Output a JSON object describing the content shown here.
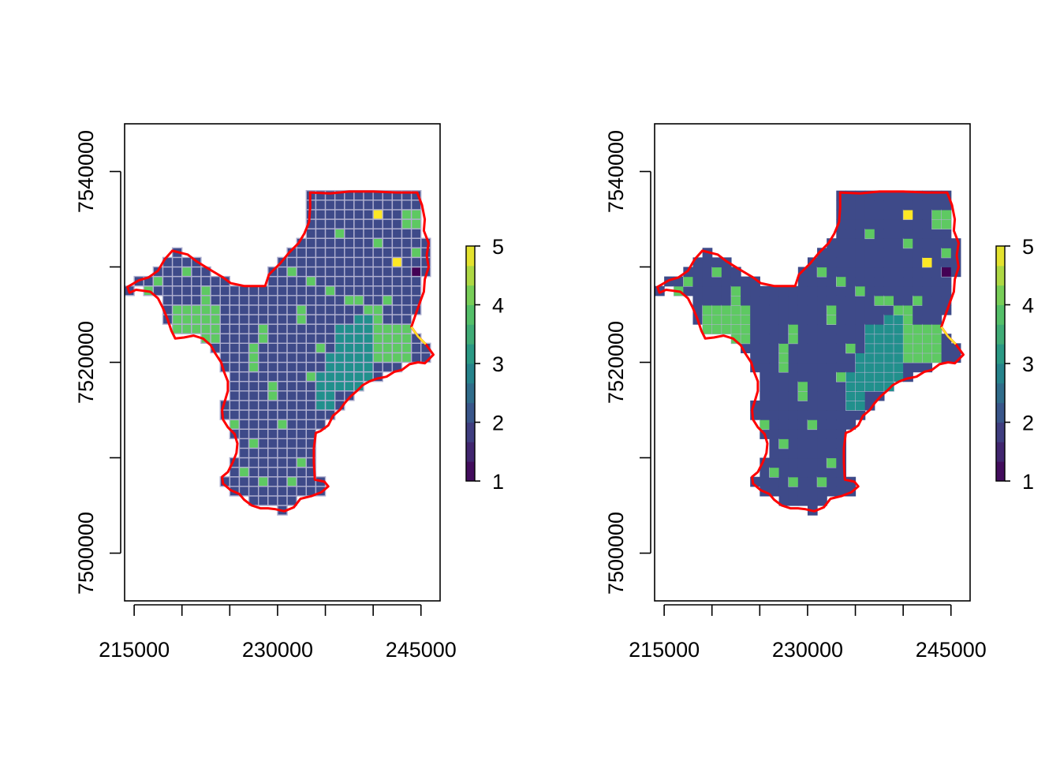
{
  "figure": {
    "panels": [
      {
        "id": "left",
        "title": "",
        "render_mode": "gridded",
        "x_ticks": [
          "215000",
          "230000",
          "245000"
        ],
        "y_ticks": [
          "7500000",
          "7520000",
          "7540000"
        ],
        "legend": {
          "ticks": [
            "1",
            "2",
            "3",
            "4",
            "5"
          ]
        }
      },
      {
        "id": "right",
        "title": "",
        "render_mode": "filled",
        "x_ticks": [
          "215000",
          "230000",
          "245000"
        ],
        "y_ticks": [
          "7500000",
          "7520000",
          "7540000"
        ],
        "legend": {
          "ticks": [
            "1",
            "2",
            "3",
            "4",
            "5"
          ]
        }
      }
    ]
  },
  "map_data": {
    "x_range": [
      214000,
      247000
    ],
    "y_range": [
      7495000,
      7545000
    ],
    "x_major_ticks": [
      215000,
      220000,
      225000,
      230000,
      235000,
      240000,
      245000
    ],
    "x_labeled_ticks": [
      215000,
      230000,
      245000
    ],
    "y_major_ticks": [
      7500000,
      7510000,
      7520000,
      7530000,
      7540000
    ],
    "y_labeled_ticks": [
      7500000,
      7520000,
      7540000
    ],
    "cell_size": 1000,
    "value_range": [
      1,
      5
    ],
    "legend_placement": "right",
    "colors": {
      "v1": "#440154",
      "v2": "#3e4a89",
      "v3": "#21908c",
      "v4": "#5ec962",
      "v5": "#fde725",
      "grid_line": "#b0b0d0",
      "outline": "#ff0000",
      "outline_yellow": "#fde725"
    },
    "boundary": [
      [
        214300,
        7527900
      ],
      [
        215500,
        7528600
      ],
      [
        216500,
        7528900
      ],
      [
        217500,
        7529600
      ],
      [
        218200,
        7530800
      ],
      [
        219000,
        7531700
      ],
      [
        219800,
        7531500
      ],
      [
        220600,
        7531300
      ],
      [
        221500,
        7530600
      ],
      [
        222300,
        7530100
      ],
      [
        223300,
        7529500
      ],
      [
        224300,
        7528900
      ],
      [
        225100,
        7528300
      ],
      [
        226500,
        7528000
      ],
      [
        227800,
        7528000
      ],
      [
        228700,
        7528000
      ],
      [
        229100,
        7529200
      ],
      [
        230300,
        7530400
      ],
      [
        231200,
        7531500
      ],
      [
        232200,
        7532500
      ],
      [
        232800,
        7533500
      ],
      [
        233300,
        7534700
      ],
      [
        233400,
        7536200
      ],
      [
        233400,
        7537800
      ],
      [
        235500,
        7537700
      ],
      [
        237500,
        7537900
      ],
      [
        240000,
        7537900
      ],
      [
        242500,
        7537800
      ],
      [
        244600,
        7537800
      ],
      [
        245100,
        7536500
      ],
      [
        245400,
        7535000
      ],
      [
        245300,
        7533800
      ],
      [
        245800,
        7532500
      ],
      [
        245600,
        7531200
      ],
      [
        245800,
        7530000
      ],
      [
        245400,
        7528700
      ],
      [
        245300,
        7527400
      ],
      [
        244900,
        7526300
      ],
      [
        244400,
        7524900
      ],
      [
        244000,
        7523700
      ],
      [
        244700,
        7522700
      ],
      [
        245500,
        7521900
      ],
      [
        246300,
        7520800
      ],
      [
        245400,
        7519900
      ],
      [
        244700,
        7520000
      ],
      [
        243800,
        7519800
      ],
      [
        243000,
        7519200
      ],
      [
        242200,
        7519000
      ],
      [
        241400,
        7518500
      ],
      [
        240400,
        7518300
      ],
      [
        239600,
        7518000
      ],
      [
        238900,
        7517600
      ],
      [
        238300,
        7517000
      ],
      [
        237600,
        7516400
      ],
      [
        237000,
        7515700
      ],
      [
        236500,
        7515000
      ],
      [
        235800,
        7514400
      ],
      [
        235300,
        7513400
      ],
      [
        234500,
        7512800
      ],
      [
        234000,
        7512600
      ],
      [
        233800,
        7511000
      ],
      [
        233800,
        7509500
      ],
      [
        233900,
        7507700
      ],
      [
        234900,
        7507500
      ],
      [
        235300,
        7507000
      ],
      [
        234600,
        7506400
      ],
      [
        233600,
        7506000
      ],
      [
        232400,
        7505700
      ],
      [
        231700,
        7504800
      ],
      [
        230700,
        7504400
      ],
      [
        229800,
        7504600
      ],
      [
        229000,
        7504700
      ],
      [
        228200,
        7504700
      ],
      [
        227300,
        7505000
      ],
      [
        226500,
        7505600
      ],
      [
        226000,
        7506200
      ],
      [
        225100,
        7506600
      ],
      [
        224300,
        7507300
      ],
      [
        224200,
        7508000
      ],
      [
        224800,
        7508500
      ],
      [
        225300,
        7509500
      ],
      [
        225700,
        7510500
      ],
      [
        225800,
        7511500
      ],
      [
        225500,
        7512500
      ],
      [
        224800,
        7513200
      ],
      [
        224300,
        7514000
      ],
      [
        224200,
        7515000
      ],
      [
        224500,
        7516000
      ],
      [
        224800,
        7517000
      ],
      [
        224800,
        7518000
      ],
      [
        224400,
        7519000
      ],
      [
        224100,
        7520000
      ],
      [
        223500,
        7520900
      ],
      [
        223000,
        7521800
      ],
      [
        222200,
        7522500
      ],
      [
        221200,
        7522800
      ],
      [
        220200,
        7522600
      ],
      [
        219300,
        7522500
      ],
      [
        218900,
        7523300
      ],
      [
        218500,
        7524500
      ],
      [
        218000,
        7525700
      ],
      [
        217500,
        7526700
      ],
      [
        216700,
        7527400
      ],
      [
        216000,
        7527500
      ],
      [
        215200,
        7527600
      ],
      [
        214500,
        7527300
      ],
      [
        214300,
        7527900
      ]
    ],
    "yellow_edge": [
      [
        244000,
        7523700
      ],
      [
        244700,
        7522700
      ],
      [
        245500,
        7521900
      ]
    ],
    "v5_cells": [
      [
        240000,
        7535000
      ],
      [
        242000,
        7530000
      ]
    ],
    "v1_cells": [
      [
        227000,
        7528000
      ],
      [
        244000,
        7529000
      ]
    ],
    "v3_rects": [
      [
        238000,
        7516000,
        240000,
        7525000
      ],
      [
        236000,
        7517000,
        238000,
        7524000
      ],
      [
        234000,
        7515000,
        236000,
        7519000
      ],
      [
        235000,
        7519000,
        236000,
        7521000
      ]
    ],
    "v4_rects": [
      [
        219000,
        7522000,
        224000,
        7526000
      ],
      [
        222000,
        7526000,
        223000,
        7528000
      ],
      [
        227000,
        7519000,
        228000,
        7522000
      ],
      [
        228000,
        7522000,
        229000,
        7524000
      ],
      [
        229000,
        7516000,
        230000,
        7518000
      ],
      [
        227000,
        7511000,
        228000,
        7512000
      ],
      [
        225000,
        7513000,
        226000,
        7514000
      ],
      [
        230000,
        7513000,
        231000,
        7514000
      ],
      [
        228000,
        7507000,
        229000,
        7508000
      ],
      [
        231000,
        7507000,
        232000,
        7508000
      ],
      [
        226000,
        7508000,
        227000,
        7509000
      ],
      [
        232000,
        7509000,
        233000,
        7510000
      ],
      [
        240000,
        7520000,
        244000,
        7524000
      ],
      [
        243000,
        7519000,
        244000,
        7520000
      ],
      [
        239000,
        7524000,
        241000,
        7526000
      ],
      [
        241000,
        7526000,
        242000,
        7527000
      ],
      [
        237000,
        7526000,
        239000,
        7527000
      ],
      [
        235000,
        7527000,
        236000,
        7528000
      ],
      [
        231000,
        7529000,
        232000,
        7530000
      ],
      [
        233000,
        7528000,
        234000,
        7529000
      ],
      [
        236000,
        7533000,
        237000,
        7534000
      ],
      [
        243000,
        7534000,
        245000,
        7536000
      ],
      [
        240000,
        7532000,
        241000,
        7533000
      ],
      [
        244000,
        7531000,
        245000,
        7532000
      ],
      [
        217000,
        7528000,
        218000,
        7529000
      ],
      [
        220000,
        7529000,
        221000,
        7530000
      ],
      [
        245000,
        7527000,
        246000,
        7528000
      ],
      [
        232000,
        7524000,
        233000,
        7526000
      ],
      [
        234000,
        7521000,
        235000,
        7522000
      ],
      [
        233000,
        7518000,
        234000,
        7519000
      ],
      [
        216000,
        7527000,
        217000,
        7528000
      ]
    ]
  }
}
